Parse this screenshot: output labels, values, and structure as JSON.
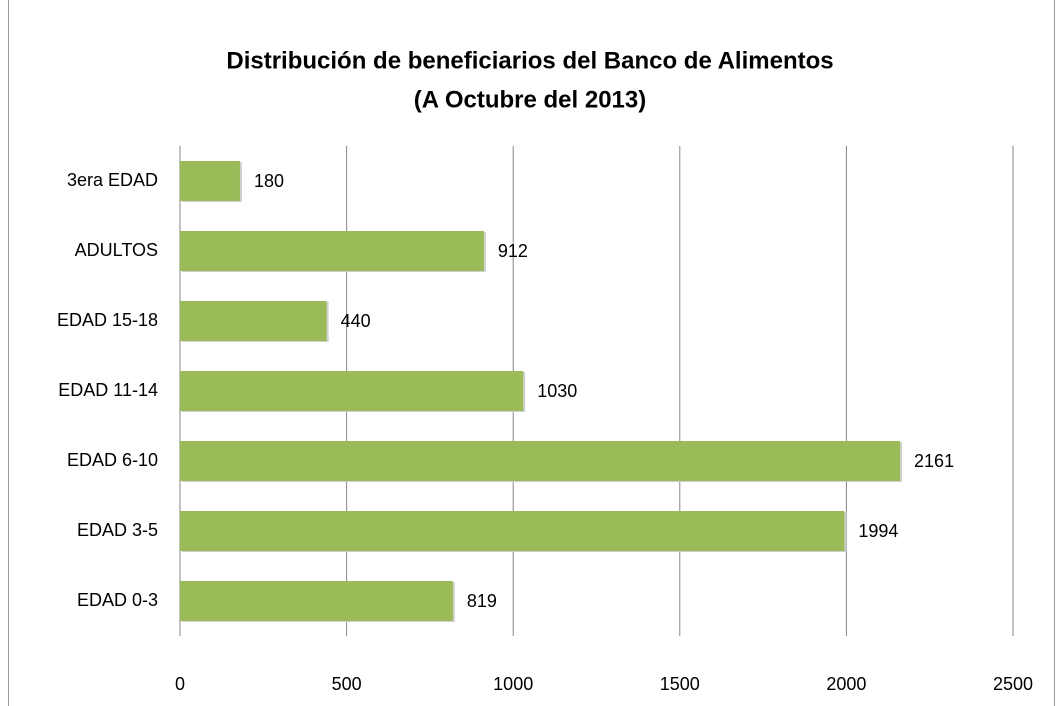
{
  "chart_data": {
    "type": "hbar",
    "title": "Distribución de beneficiarios del Banco de Alimentos",
    "subtitle": "(A Octubre del 2013)",
    "categories": [
      "3era EDAD",
      "ADULTOS",
      "EDAD 15-18",
      "EDAD 11-14",
      "EDAD 6-10",
      "EDAD 3-5",
      "EDAD 0-3"
    ],
    "values": [
      180,
      912,
      440,
      1030,
      2161,
      1994,
      819
    ],
    "color": "#9bbb59",
    "xlim": [
      0,
      2500
    ],
    "xticks": [
      0,
      500,
      1000,
      1500,
      2000,
      2500
    ],
    "grid": true
  }
}
